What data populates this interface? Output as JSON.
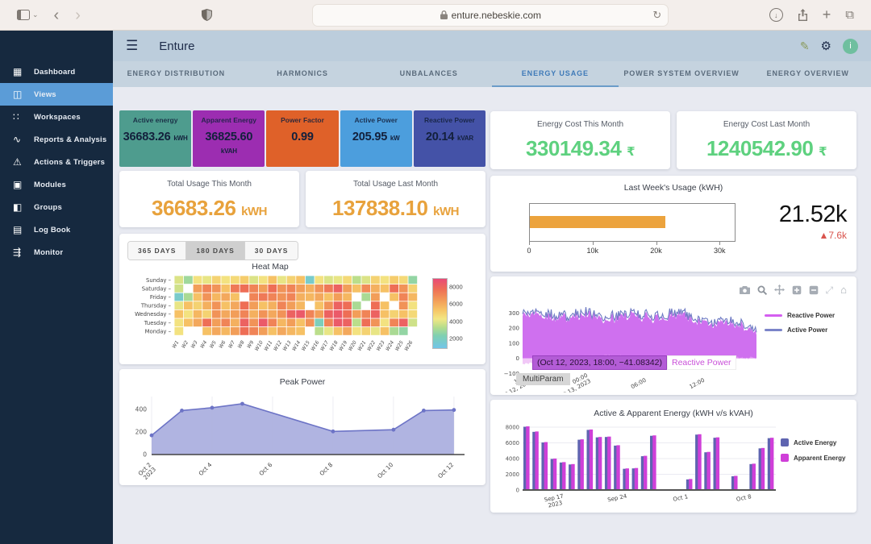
{
  "browser": {
    "url": "enture.nebeskie.com"
  },
  "header": {
    "title": "Enture",
    "avatar_text": "i"
  },
  "sidebar": {
    "items": [
      {
        "label": "Dashboard",
        "active": false
      },
      {
        "label": "Views",
        "active": true
      },
      {
        "label": "Workspaces",
        "active": false
      },
      {
        "label": "Reports & Analysis",
        "active": false
      },
      {
        "label": "Actions & Triggers",
        "active": false
      },
      {
        "label": "Modules",
        "active": false
      },
      {
        "label": "Groups",
        "active": false
      },
      {
        "label": "Log Book",
        "active": false
      },
      {
        "label": "Monitor",
        "active": false
      }
    ]
  },
  "tabs": {
    "active_index": 3,
    "items": [
      {
        "label": "ENERGY DISTRIBUTION"
      },
      {
        "label": "HARMONICS"
      },
      {
        "label": "UNBALANCES"
      },
      {
        "label": "ENERGY USAGE"
      },
      {
        "label": "POWER SYSTEM OVERVIEW"
      },
      {
        "label": "ENERGY OVERVIEW"
      }
    ]
  },
  "kpis": [
    {
      "label": "Active energy",
      "value": "36683.26",
      "unit": "kWH",
      "color": "#4e9c8e"
    },
    {
      "label": "Apparent Energy",
      "value": "36825.60",
      "unit": "kVAH",
      "color": "#9c2db1"
    },
    {
      "label": "Power Factor",
      "value": "0.99",
      "unit": "",
      "color": "#df6129"
    },
    {
      "label": "Active Power",
      "value": "205.95",
      "unit": "kW",
      "color": "#4c9edd"
    },
    {
      "label": "Reactive Power",
      "value": "20.14",
      "unit": "kVAR",
      "color": "#4452a7"
    }
  ],
  "usage_cards": [
    {
      "title": "Total Usage This Month",
      "value": "36683.26",
      "unit": "kWH"
    },
    {
      "title": "Total Usage Last Month",
      "value": "137838.10",
      "unit": "kWH"
    }
  ],
  "cost_cards": [
    {
      "title": "Energy Cost This Month",
      "value": "330149.34",
      "unit": "₹"
    },
    {
      "title": "Energy Cost Last Month",
      "value": "1240542.90",
      "unit": "₹"
    }
  ],
  "chart_data": [
    {
      "id": "last_week_usage",
      "type": "bullet",
      "title": "Last Week's Usage (kWH)",
      "value": 21520,
      "value_label": "21.52k",
      "delta_label": "▲7.6k",
      "axis_max": 32500,
      "axis_ticks": [
        {
          "v": 0,
          "label": "0"
        },
        {
          "v": 10000,
          "label": "10k"
        },
        {
          "v": 20000,
          "label": "20k"
        },
        {
          "v": 30000,
          "label": "30k"
        }
      ],
      "bar_color": "#eca33d"
    },
    {
      "id": "heat_map",
      "type": "heatmap",
      "title": "Heat Map",
      "ranges": [
        "365 DAYS",
        "180 DAYS",
        "30 DAYS"
      ],
      "active_range": 1,
      "rows": [
        "Sunday",
        "Saturday",
        "Friday",
        "Thursday",
        "Wednesday",
        "Tuesday",
        "Monday"
      ],
      "cols": [
        "W1",
        "W2",
        "W3",
        "W4",
        "W5",
        "W6",
        "W7",
        "W8",
        "W9",
        "W10",
        "W11",
        "W12",
        "W13",
        "W14",
        "W15",
        "W16",
        "W17",
        "W18",
        "W19",
        "W20",
        "W21",
        "W22",
        "W23",
        "W24",
        "W25",
        "W26"
      ],
      "values": [
        [
          4000,
          3000,
          4500,
          4200,
          5000,
          4500,
          4800,
          5200,
          4000,
          4500,
          5500,
          4200,
          5000,
          5500,
          1800,
          4500,
          4000,
          4200,
          4800,
          3500,
          4000,
          5000,
          4500,
          5200,
          4800,
          2800
        ],
        [
          3800,
          null,
          6500,
          7200,
          6800,
          5500,
          7500,
          7800,
          7200,
          6500,
          7800,
          6800,
          7200,
          6500,
          6000,
          6800,
          7500,
          8200,
          6500,
          5500,
          7000,
          6000,
          5500,
          7800,
          6800,
          5000
        ],
        [
          1800,
          3200,
          5500,
          6800,
          5800,
          6200,
          5500,
          null,
          7200,
          7500,
          7200,
          6800,
          7200,
          6000,
          5800,
          6200,
          5500,
          6500,
          5800,
          null,
          3200,
          6500,
          null,
          5500,
          7200,
          5800
        ],
        [
          4200,
          5500,
          5000,
          6000,
          6800,
          5500,
          6200,
          7800,
          6500,
          5500,
          6000,
          7200,
          6500,
          5800,
          null,
          5500,
          6800,
          8200,
          7800,
          3200,
          null,
          7800,
          5500,
          null,
          6800,
          4500
        ],
        [
          5500,
          4500,
          5800,
          5000,
          6800,
          6200,
          6500,
          7200,
          6000,
          6800,
          6200,
          6800,
          8200,
          8500,
          7200,
          6500,
          8200,
          8500,
          7800,
          6500,
          7200,
          8200,
          5500,
          5000,
          5500,
          4800
        ],
        [
          4500,
          5500,
          6200,
          7800,
          6500,
          7200,
          6000,
          8200,
          6800,
          8500,
          7200,
          5800,
          6500,
          5500,
          6800,
          2200,
          7200,
          8500,
          8200,
          3500,
          7800,
          6800,
          4500,
          7200,
          8200,
          3800
        ],
        [
          4500,
          null,
          null,
          5500,
          6200,
          5800,
          6500,
          7800,
          7200,
          6500,
          5500,
          6200,
          5800,
          5500,
          null,
          3500,
          4200,
          5500,
          6200,
          4500,
          5000,
          4200,
          5500,
          3200,
          2800,
          null
        ]
      ],
      "vmin": 1000,
      "vmax": 9000,
      "colorscale": [
        [
          0,
          "#72c5e8"
        ],
        [
          0.18,
          "#7fd0b2"
        ],
        [
          0.3,
          "#b5dd8c"
        ],
        [
          0.42,
          "#f2e784"
        ],
        [
          0.55,
          "#f6c566"
        ],
        [
          0.7,
          "#f29a58"
        ],
        [
          0.85,
          "#ee6e56"
        ],
        [
          1,
          "#e84b77"
        ]
      ],
      "colorbar_ticks": [
        8000,
        6000,
        4000,
        2000
      ]
    },
    {
      "id": "multiparam",
      "type": "line-area",
      "legend": [
        {
          "label": "Reactive Power",
          "color": "#d45ff0"
        },
        {
          "label": "Active Power",
          "color": "#7b84c9"
        }
      ],
      "yticks": [
        300,
        200,
        100,
        0,
        -100
      ],
      "xticks": [
        {
          "t": 0.03,
          "lines": [
            "18:00",
            "Oct 12, 2023"
          ]
        },
        {
          "t": 0.28,
          "lines": [
            "00:00",
            "Oct 13, 2023"
          ]
        },
        {
          "t": 0.53,
          "lines": [
            "06:00"
          ]
        },
        {
          "t": 0.78,
          "lines": [
            "12:00"
          ]
        }
      ],
      "tooltip": {
        "point_text": "(Oct 12, 2023, 18:00, −41.08342)",
        "series_text": "Reactive Power"
      },
      "hover_label": "MultiParam",
      "seed": 11,
      "points": 230,
      "y_range": [
        -130,
        360
      ],
      "fill_color": "#c85ced",
      "line_color": "#6f7bc4",
      "reactive_color": "#eaaaf2"
    },
    {
      "id": "peak_power",
      "type": "area",
      "title": "Peak Power",
      "x": [
        2,
        3,
        4,
        5,
        8,
        10,
        11,
        12
      ],
      "y": [
        170,
        390,
        415,
        450,
        205,
        220,
        390,
        395
      ],
      "yticks": [
        0,
        200,
        400
      ],
      "xticks": [
        {
          "x": 2,
          "lines": [
            "Oct 2",
            "2023"
          ]
        },
        {
          "x": 4,
          "lines": [
            "Oct 4"
          ]
        },
        {
          "x": 6,
          "lines": [
            "Oct 6"
          ]
        },
        {
          "x": 8,
          "lines": [
            "Oct 8"
          ]
        },
        {
          "x": 10,
          "lines": [
            "Oct 10"
          ]
        },
        {
          "x": 12,
          "lines": [
            "Oct 12"
          ]
        }
      ],
      "fill_color": "#a9aede",
      "line_color": "#6d74c6"
    },
    {
      "id": "energy_bars",
      "type": "bar-grouped",
      "title": "Active & Apparent Energy (kWH v/s kVAH)",
      "legend": [
        {
          "label": "Active Energy",
          "color": "#5e64b0"
        },
        {
          "label": "Apparent Energy",
          "color": "#cf3fd8"
        }
      ],
      "yticks": [
        0,
        2000,
        4000,
        6000,
        8000
      ],
      "series": [
        {
          "name": "Active Energy",
          "values": [
            8050,
            7400,
            6050,
            3950,
            3500,
            3250,
            6400,
            7650,
            6700,
            6750,
            5650,
            2700,
            2750,
            4300,
            6900,
            0,
            0,
            0,
            1350,
            7050,
            4800,
            6650,
            0,
            1750,
            0,
            3300,
            5300,
            6600
          ]
        },
        {
          "name": "Apparent Energy",
          "values": [
            8100,
            7450,
            6100,
            4000,
            3550,
            3300,
            6450,
            7700,
            6750,
            6800,
            5700,
            2750,
            2800,
            4350,
            6950,
            0,
            0,
            0,
            1400,
            7100,
            4850,
            6700,
            0,
            1800,
            0,
            3350,
            5350,
            6650
          ]
        }
      ],
      "xticks": [
        {
          "i": 3,
          "lines": [
            "Sep 17",
            "2023"
          ]
        },
        {
          "i": 10,
          "lines": [
            "Sep 24"
          ]
        },
        {
          "i": 17,
          "lines": [
            "Oct 1"
          ]
        },
        {
          "i": 24,
          "lines": [
            "Oct 8"
          ]
        }
      ]
    }
  ]
}
